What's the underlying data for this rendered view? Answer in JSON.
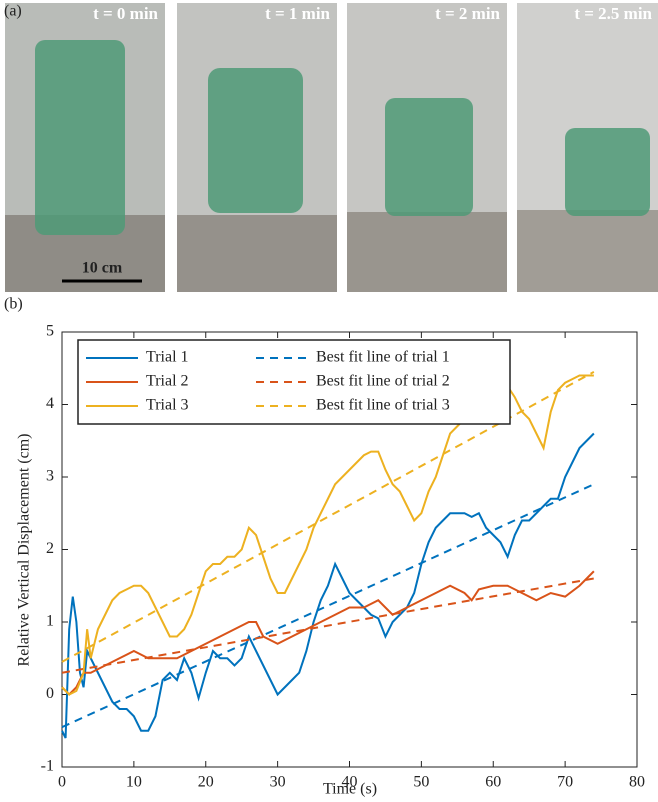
{
  "panel_a": {
    "label": "(a)",
    "frames": [
      "t = 0 min",
      "t = 1 min",
      "t = 2 min",
      "t = 2.5 min"
    ],
    "scale_bar": "10 cm"
  },
  "chart_data": {
    "type": "line",
    "panel_label": "(b)",
    "xlabel": "Time (s)",
    "ylabel": "Relative Vertical Displacement (cm)",
    "xlim": [
      0,
      80
    ],
    "ylim": [
      -1,
      5
    ],
    "xticks": [
      0,
      10,
      20,
      30,
      40,
      50,
      60,
      70,
      80
    ],
    "yticks": [
      -1,
      0,
      1,
      2,
      3,
      4,
      5
    ],
    "legend": "upper left",
    "series": [
      {
        "name": "Trial 1",
        "color": "#0072BD",
        "x": [
          0,
          0.5,
          1,
          1.5,
          2,
          2.5,
          3,
          3.5,
          4,
          5,
          6,
          7,
          8,
          9,
          10,
          11,
          12,
          13,
          14,
          15,
          16,
          17,
          18,
          19,
          20,
          21,
          22,
          23,
          24,
          25,
          26,
          27,
          28,
          29,
          30,
          31,
          32,
          33,
          34,
          35,
          36,
          37,
          38,
          39,
          40,
          41,
          42,
          43,
          44,
          45,
          46,
          47,
          48,
          49,
          50,
          51,
          52,
          53,
          54,
          55,
          56,
          57,
          58,
          59,
          60,
          61,
          62,
          63,
          64,
          65,
          66,
          67,
          68,
          69,
          70,
          71,
          72,
          73,
          74
        ],
        "values": [
          -0.5,
          -0.6,
          0.9,
          1.35,
          1.0,
          0.3,
          0.1,
          0.6,
          0.5,
          0.3,
          0.1,
          -0.1,
          -0.2,
          -0.2,
          -0.3,
          -0.5,
          -0.5,
          -0.3,
          0.2,
          0.3,
          0.2,
          0.5,
          0.3,
          -0.05,
          0.3,
          0.6,
          0.5,
          0.5,
          0.4,
          0.5,
          0.8,
          0.6,
          0.4,
          0.2,
          0.0,
          0.1,
          0.2,
          0.3,
          0.6,
          1.0,
          1.3,
          1.5,
          1.8,
          1.6,
          1.4,
          1.3,
          1.2,
          1.1,
          1.05,
          0.8,
          1.0,
          1.1,
          1.2,
          1.4,
          1.8,
          2.1,
          2.3,
          2.4,
          2.5,
          2.5,
          2.5,
          2.45,
          2.5,
          2.3,
          2.2,
          2.1,
          1.9,
          2.2,
          2.4,
          2.4,
          2.5,
          2.6,
          2.7,
          2.7,
          3.0,
          3.2,
          3.4,
          3.5,
          3.6
        ]
      },
      {
        "name": "Best fit line of trial 1",
        "color": "#0072BD",
        "dash": true,
        "x": [
          0,
          74
        ],
        "values": [
          -0.45,
          2.9
        ]
      },
      {
        "name": "Trial 2",
        "color": "#D95319",
        "x": [
          0,
          1,
          2,
          3,
          4,
          6,
          8,
          10,
          12,
          14,
          16,
          18,
          20,
          22,
          24,
          26,
          27,
          28,
          30,
          32,
          34,
          36,
          38,
          40,
          42,
          44,
          46,
          48,
          50,
          52,
          54,
          56,
          57,
          58,
          60,
          62,
          64,
          66,
          68,
          70,
          72,
          74
        ],
        "values": [
          0.1,
          0.0,
          0.1,
          0.3,
          0.3,
          0.4,
          0.5,
          0.6,
          0.5,
          0.5,
          0.5,
          0.6,
          0.7,
          0.8,
          0.9,
          1.0,
          1.0,
          0.8,
          0.7,
          0.8,
          0.9,
          1.0,
          1.1,
          1.2,
          1.2,
          1.3,
          1.1,
          1.2,
          1.3,
          1.4,
          1.5,
          1.4,
          1.3,
          1.45,
          1.5,
          1.5,
          1.4,
          1.3,
          1.4,
          1.35,
          1.5,
          1.7
        ]
      },
      {
        "name": "Best fit line of trial 2",
        "color": "#D95319",
        "dash": true,
        "x": [
          0,
          74
        ],
        "values": [
          0.3,
          1.6
        ]
      },
      {
        "name": "Trial 3",
        "color": "#EDB120",
        "x": [
          0,
          1,
          2,
          3,
          3.5,
          4,
          5,
          6,
          7,
          8,
          9,
          10,
          11,
          12,
          13,
          14,
          15,
          16,
          17,
          18,
          19,
          20,
          21,
          22,
          23,
          24,
          25,
          26,
          27,
          28,
          29,
          30,
          31,
          32,
          33,
          34,
          35,
          36,
          37,
          38,
          39,
          40,
          41,
          42,
          43,
          44,
          45,
          46,
          47,
          48,
          49,
          50,
          51,
          52,
          53,
          54,
          55,
          56,
          57,
          58,
          59,
          60,
          61,
          62,
          63,
          64,
          65,
          66,
          67,
          68,
          69,
          70,
          71,
          72,
          74
        ],
        "values": [
          0.1,
          0.0,
          0.05,
          0.3,
          0.9,
          0.5,
          0.9,
          1.1,
          1.3,
          1.4,
          1.45,
          1.5,
          1.5,
          1.4,
          1.2,
          1.0,
          0.8,
          0.8,
          0.9,
          1.1,
          1.4,
          1.7,
          1.8,
          1.8,
          1.9,
          1.9,
          2.0,
          2.3,
          2.2,
          1.9,
          1.6,
          1.4,
          1.4,
          1.6,
          1.8,
          2.0,
          2.3,
          2.5,
          2.7,
          2.9,
          3.0,
          3.1,
          3.2,
          3.3,
          3.35,
          3.35,
          3.1,
          2.9,
          2.8,
          2.6,
          2.4,
          2.5,
          2.8,
          3.0,
          3.3,
          3.6,
          3.7,
          3.8,
          3.8,
          3.9,
          4.0,
          4.1,
          4.2,
          4.25,
          4.1,
          3.9,
          3.8,
          3.6,
          3.4,
          3.9,
          4.2,
          4.3,
          4.35,
          4.4,
          4.4
        ]
      },
      {
        "name": "Best fit line of trial 3",
        "color": "#EDB120",
        "dash": true,
        "x": [
          0,
          74
        ],
        "values": [
          0.45,
          4.45
        ]
      }
    ]
  }
}
